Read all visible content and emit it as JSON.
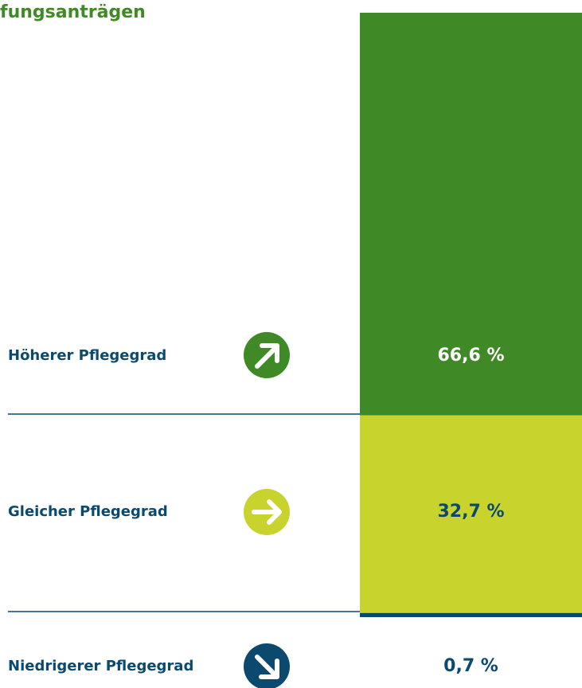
{
  "chart_data": {
    "type": "stacked-bar",
    "title": "fungsanträgen",
    "categories": [
      "Höherer Pflegegrad",
      "Gleicher Pflegegrad",
      "Niedrigerer Pflegegrad"
    ],
    "values": [
      66.6,
      32.7,
      0.7
    ],
    "value_labels": [
      "66,6 %",
      "32,7 %",
      "0,7 %"
    ],
    "colors": [
      "#3f8a26",
      "#c8d32e",
      "#0b4a6e"
    ],
    "ylim": [
      0,
      100
    ]
  }
}
